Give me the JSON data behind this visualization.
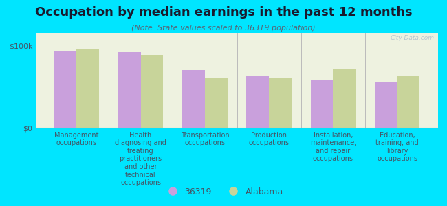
{
  "title": "Occupation by median earnings in the past 12 months",
  "subtitle": "(Note: State values scaled to 36319 population)",
  "background_color": "#00e5ff",
  "plot_bg_color": "#eef2e0",
  "bar_color_1": "#c9a0dc",
  "bar_color_2": "#c8d49a",
  "categories": [
    "Management\noccupations",
    "Health\ndiagnosing and\ntreating\npractitioners\nand other\ntechnical\noccupations",
    "Transportation\noccupations",
    "Production\noccupations",
    "Installation,\nmaintenance,\nand repair\noccupations",
    "Education,\ntraining, and\nlibrary\noccupations"
  ],
  "values_36319": [
    93000,
    92000,
    70000,
    63000,
    58000,
    55000
  ],
  "values_alabama": [
    95000,
    88000,
    61000,
    60000,
    71000,
    63000
  ],
  "ylim": [
    0,
    115000
  ],
  "yticks": [
    0,
    100000
  ],
  "ytick_labels": [
    "$0",
    "$100k"
  ],
  "legend_labels": [
    "36319",
    "Alabama"
  ],
  "watermark": "City-Data.com",
  "title_color": "#1a1a2e",
  "subtitle_color": "#556677",
  "tick_label_color": "#445566",
  "ytick_color": "#445566",
  "spine_color": "#aaaaaa",
  "separator_color": "#bbbbbb",
  "watermark_color": "#aabbcc",
  "title_fontsize": 13,
  "subtitle_fontsize": 8,
  "ytick_fontsize": 8,
  "xtick_fontsize": 7,
  "legend_fontsize": 9,
  "watermark_fontsize": 6.5
}
